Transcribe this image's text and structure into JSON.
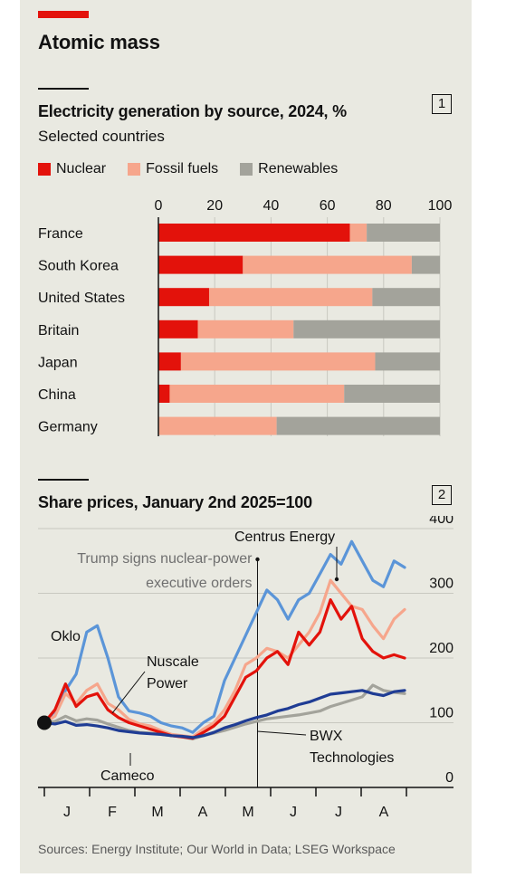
{
  "headline": "Atomic mass",
  "source": "Sources: Energy Institute; Our World in Data; LSEG Workspace",
  "colors": {
    "nuclear": "#e3120b",
    "fossil": "#f6a68c",
    "renewables": "#a3a39b",
    "background": "#e9e9e1",
    "nuscale": "#f6a68c",
    "oklo": "#5b95d8",
    "centrus": "#e3120b",
    "cameco": "#a3a39b",
    "bwx": "#1f3c94"
  },
  "chart1": {
    "number": "1",
    "title": "Electricity generation by source, 2024, %",
    "subtitle": "Selected countries",
    "legend": [
      "Nuclear",
      "Fossil fuels",
      "Renewables"
    ]
  },
  "chart2": {
    "number": "2",
    "title": "Share prices, January 2nd 2025=100",
    "annotation": [
      "Trump signs nuclear-power",
      "executive orders"
    ],
    "series_labels": {
      "oklo": [
        "Oklo"
      ],
      "nuscale": [
        "Nuscale",
        "Power"
      ],
      "centrus": [
        "Centrus Energy"
      ],
      "cameco": [
        "Cameco"
      ],
      "bwx": [
        "BWX",
        "Technologies"
      ]
    }
  },
  "chart_data": [
    {
      "type": "bar",
      "stacked": true,
      "orientation": "horizontal",
      "title": "Electricity generation by source, 2024, %",
      "subtitle": "Selected countries",
      "categories": [
        "France",
        "South Korea",
        "United States",
        "Britain",
        "Japan",
        "China",
        "Germany"
      ],
      "series": [
        {
          "name": "Nuclear",
          "values": [
            68,
            30,
            18,
            14,
            8,
            4,
            0
          ]
        },
        {
          "name": "Fossil fuels",
          "values": [
            6,
            60,
            58,
            34,
            69,
            62,
            42
          ]
        },
        {
          "name": "Renewables",
          "values": [
            26,
            10,
            24,
            52,
            23,
            34,
            58
          ]
        }
      ],
      "xlim": [
        0,
        100
      ],
      "xticks": [
        0,
        20,
        40,
        60,
        80,
        100
      ],
      "legend_position": "top"
    },
    {
      "type": "line",
      "title": "Share prices, January 2nd 2025=100",
      "x": [
        "Jan 2",
        "Jan 9",
        "Jan 16",
        "Jan 23",
        "Jan 30",
        "Feb 6",
        "Feb 13",
        "Feb 20",
        "Feb 27",
        "Mar 6",
        "Mar 13",
        "Mar 20",
        "Mar 27",
        "Apr 3",
        "Apr 10",
        "Apr 17",
        "Apr 24",
        "May 1",
        "May 8",
        "May 15",
        "May 22",
        "May 29",
        "Jun 5",
        "Jun 12",
        "Jun 19",
        "Jun 26",
        "Jul 3",
        "Jul 10",
        "Jul 17",
        "Jul 24",
        "Jul 31",
        "Aug 7",
        "Aug 14",
        "Aug 21",
        "Aug 28"
      ],
      "x_tick_labels": [
        "J",
        "F",
        "M",
        "A",
        "M",
        "J",
        "J",
        "A"
      ],
      "series": [
        {
          "name": "Oklo",
          "values": [
            100,
            118,
            150,
            175,
            240,
            250,
            200,
            140,
            118,
            115,
            110,
            100,
            95,
            92,
            85,
            100,
            110,
            165,
            200,
            235,
            270,
            305,
            290,
            260,
            290,
            300,
            330,
            360,
            345,
            380,
            350,
            320,
            310,
            350,
            340
          ]
        },
        {
          "name": "Nuscale Power",
          "values": [
            100,
            110,
            145,
            130,
            150,
            160,
            130,
            120,
            105,
            98,
            95,
            88,
            82,
            80,
            78,
            90,
            100,
            120,
            150,
            190,
            200,
            215,
            210,
            200,
            220,
            240,
            270,
            320,
            300,
            280,
            275,
            250,
            230,
            260,
            275
          ]
        },
        {
          "name": "Centrus Energy",
          "values": [
            100,
            120,
            160,
            125,
            140,
            145,
            120,
            108,
            100,
            95,
            90,
            85,
            80,
            78,
            76,
            85,
            95,
            110,
            140,
            170,
            180,
            200,
            210,
            190,
            240,
            220,
            240,
            290,
            260,
            280,
            230,
            210,
            200,
            205,
            200
          ]
        },
        {
          "name": "Cameco",
          "values": [
            100,
            102,
            110,
            103,
            106,
            104,
            98,
            93,
            88,
            85,
            84,
            82,
            80,
            78,
            75,
            80,
            84,
            88,
            93,
            98,
            102,
            106,
            108,
            110,
            112,
            115,
            118,
            125,
            130,
            135,
            140,
            158,
            150,
            147,
            145
          ]
        },
        {
          "name": "BWX Technologies",
          "values": [
            100,
            98,
            102,
            96,
            97,
            95,
            92,
            88,
            86,
            84,
            83,
            82,
            80,
            79,
            77,
            80,
            85,
            92,
            97,
            103,
            108,
            112,
            118,
            122,
            128,
            132,
            138,
            144,
            146,
            148,
            150,
            145,
            142,
            148,
            150
          ]
        }
      ],
      "ylim": [
        0,
        400
      ],
      "yticks": [
        0,
        100,
        200,
        300,
        400
      ],
      "grid": true,
      "annotation": "Trump signs nuclear-power executive orders",
      "annotation_x": "May 23"
    }
  ]
}
